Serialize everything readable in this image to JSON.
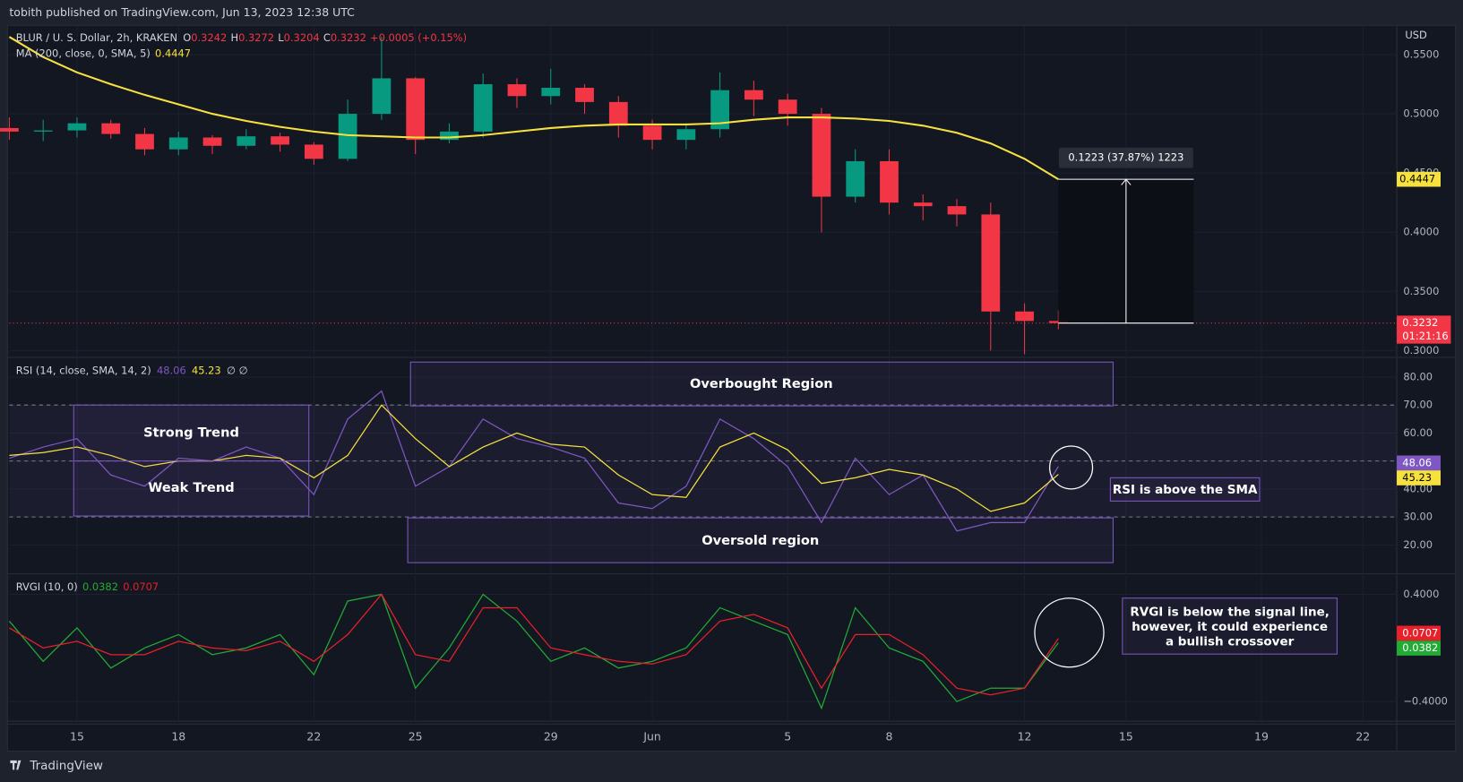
{
  "header": {
    "publisher": "tobith published on TradingView.com, Jun 13, 2023 12:38 UTC"
  },
  "footer": {
    "brand": "TradingView"
  },
  "chart_data": [
    {
      "type": "candlestick",
      "title": "BLUR / U. S. Dollar, 2h, KRAKEN",
      "currency": "USD",
      "ohlc_labels": [
        "O",
        "H",
        "L",
        "C"
      ],
      "last_bar": {
        "open": 0.3242,
        "high": 0.3272,
        "low": 0.3204
      },
      "change": "+0.0005 (+0.15%)",
      "countdown": "01:21:16",
      "colors": {
        "up": "#089981",
        "down": "#f23645"
      },
      "x": [
        "2023-05-13",
        "2023-05-14",
        "2023-05-15",
        "2023-05-16",
        "2023-05-17",
        "2023-05-18",
        "2023-05-19",
        "2023-05-20",
        "2023-05-21",
        "2023-05-22",
        "2023-05-23",
        "2023-05-24",
        "2023-05-25",
        "2023-05-26",
        "2023-05-27",
        "2023-05-28",
        "2023-05-29",
        "2023-05-30",
        "2023-05-31",
        "2023-06-01",
        "2023-06-02",
        "2023-06-03",
        "2023-06-04",
        "2023-06-05",
        "2023-06-06",
        "2023-06-07",
        "2023-06-08",
        "2023-06-09",
        "2023-06-10",
        "2023-06-11",
        "2023-06-12",
        "2023-06-13"
      ],
      "open": [
        0.488,
        0.485,
        0.486,
        0.492,
        0.483,
        0.47,
        0.48,
        0.473,
        0.481,
        0.474,
        0.462,
        0.5,
        0.53,
        0.478,
        0.485,
        0.525,
        0.515,
        0.522,
        0.51,
        0.49,
        0.478,
        0.487,
        0.52,
        0.512,
        0.5,
        0.43,
        0.46,
        0.425,
        0.422,
        0.415,
        0.333,
        0.325
      ],
      "high": [
        0.497,
        0.495,
        0.497,
        0.495,
        0.488,
        0.485,
        0.482,
        0.487,
        0.484,
        0.476,
        0.512,
        0.565,
        0.531,
        0.492,
        0.534,
        0.53,
        0.538,
        0.525,
        0.515,
        0.495,
        0.492,
        0.535,
        0.528,
        0.517,
        0.505,
        0.47,
        0.47,
        0.432,
        0.428,
        0.425,
        0.34,
        0.334
      ],
      "low": [
        0.478,
        0.477,
        0.48,
        0.479,
        0.465,
        0.465,
        0.466,
        0.47,
        0.468,
        0.457,
        0.46,
        0.495,
        0.466,
        0.475,
        0.48,
        0.505,
        0.508,
        0.5,
        0.48,
        0.47,
        0.47,
        0.48,
        0.498,
        0.49,
        0.4,
        0.425,
        0.415,
        0.41,
        0.405,
        0.3,
        0.297,
        0.318
      ],
      "close": [
        0.485,
        0.486,
        0.492,
        0.483,
        0.47,
        0.48,
        0.473,
        0.481,
        0.474,
        0.462,
        0.5,
        0.53,
        0.478,
        0.485,
        0.525,
        0.515,
        0.522,
        0.51,
        0.49,
        0.478,
        0.487,
        0.52,
        0.512,
        0.5,
        0.43,
        0.46,
        0.425,
        0.422,
        0.415,
        0.333,
        0.325,
        0.3232
      ],
      "ma": {
        "name": "MA (200, close, 0, SMA, 5)",
        "color": "#f7e13e",
        "values": [
          0.565,
          0.548,
          0.535,
          0.525,
          0.516,
          0.508,
          0.5,
          0.494,
          0.489,
          0.485,
          0.482,
          0.481,
          0.48,
          0.48,
          0.482,
          0.485,
          0.488,
          0.49,
          0.491,
          0.491,
          0.491,
          0.492,
          0.495,
          0.497,
          0.497,
          0.496,
          0.494,
          0.49,
          0.484,
          0.475,
          0.462,
          0.4447
        ]
      },
      "measure": {
        "label": "0.1223 (37.87%) 1223",
        "x_range": [
          "2023-06-13",
          "2023-06-17"
        ]
      },
      "xlim": [
        "2023-05-13",
        "2023-06-23"
      ],
      "xticks": [
        {
          "value": "2023-05-15",
          "label": "15"
        },
        {
          "value": "2023-05-18",
          "label": "18"
        },
        {
          "value": "2023-05-22",
          "label": "22"
        },
        {
          "value": "2023-05-25",
          "label": "25"
        },
        {
          "value": "2023-05-29",
          "label": "29"
        },
        {
          "value": "2023-06-01",
          "label": "Jun"
        },
        {
          "value": "2023-06-05",
          "label": "5"
        },
        {
          "value": "2023-06-08",
          "label": "8"
        },
        {
          "value": "2023-06-12",
          "label": "12"
        },
        {
          "value": "2023-06-15",
          "label": "15"
        },
        {
          "value": "2023-06-19",
          "label": "19"
        },
        {
          "value": "2023-06-22",
          "label": "22"
        }
      ],
      "ylim": [
        0.295,
        0.574
      ],
      "yticks": [
        {
          "value": 0.3,
          "label": "0.3000"
        },
        {
          "value": 0.35,
          "label": "0.3500"
        },
        {
          "value": 0.4,
          "label": "0.4000"
        },
        {
          "value": 0.45,
          "label": "0.4500"
        },
        {
          "value": 0.5,
          "label": "0.5000"
        },
        {
          "value": 0.55,
          "label": "0.5500"
        }
      ]
    },
    {
      "type": "line",
      "title": "RSI (14, close, SMA, 14, 2)",
      "flags": "∅ ∅",
      "rsi": {
        "color": "#7e57c2",
        "values": [
          51,
          55,
          58,
          45,
          41,
          51,
          50,
          55,
          51,
          38,
          65,
          75,
          41,
          48,
          65,
          58,
          55,
          51,
          35,
          33,
          41,
          65,
          58,
          48,
          28,
          51,
          38,
          45,
          25,
          28,
          28,
          48.06
        ]
      },
      "sma": {
        "color": "#f7e13e",
        "values": [
          52,
          53,
          55,
          52,
          48,
          50,
          50,
          52,
          51,
          44,
          52,
          70,
          58,
          48,
          55,
          60,
          56,
          55,
          45,
          38,
          37,
          55,
          60,
          54,
          42,
          44,
          47,
          45,
          40,
          32,
          35,
          45.23
        ]
      },
      "bands": [
        70,
        50,
        30
      ],
      "ylim": [
        10,
        86.7
      ],
      "yticks": [
        {
          "value": 20,
          "label": "20.00"
        },
        {
          "value": 30,
          "label": "30.00"
        },
        {
          "value": 40,
          "label": "40.00"
        },
        {
          "value": 50,
          "label": "50.00"
        },
        {
          "value": 60,
          "label": "60.00"
        },
        {
          "value": 70,
          "label": "70.00"
        },
        {
          "value": 80,
          "label": "80.00"
        }
      ],
      "annotations": [
        "Overbought Region",
        "Strong Trend",
        "Weak Trend",
        "Oversold region",
        "RSI is above the SMA"
      ]
    },
    {
      "type": "line",
      "title": "RVGI (10, 0)",
      "rvgi": {
        "color": "#22ab35",
        "values": [
          0.2,
          -0.1,
          0.15,
          -0.15,
          0.0,
          0.1,
          -0.05,
          0.0,
          0.1,
          -0.2,
          0.35,
          0.4,
          -0.3,
          0.0,
          0.4,
          0.2,
          -0.1,
          0.0,
          -0.15,
          -0.1,
          0.0,
          0.3,
          0.2,
          0.1,
          -0.45,
          0.3,
          0.0,
          -0.1,
          -0.4,
          -0.3,
          -0.3,
          0.0382
        ]
      },
      "signal": {
        "color": "#e8202a",
        "values": [
          0.15,
          0.0,
          0.05,
          -0.05,
          -0.05,
          0.05,
          0.0,
          -0.02,
          0.05,
          -0.1,
          0.1,
          0.4,
          -0.05,
          -0.1,
          0.3,
          0.3,
          0.0,
          -0.05,
          -0.1,
          -0.12,
          -0.05,
          0.2,
          0.25,
          0.15,
          -0.3,
          0.1,
          0.1,
          -0.05,
          -0.3,
          -0.35,
          -0.3,
          0.0707
        ]
      },
      "ylim": [
        -0.54,
        0.546
      ],
      "yticks": [
        {
          "value": 0.4,
          "label": "0.4000"
        },
        {
          "value": -0.4,
          "label": "−0.4000"
        }
      ],
      "annotation": [
        "RVGI is below the signal line,",
        "however, it could experience",
        "a bullish crossover"
      ]
    }
  ]
}
